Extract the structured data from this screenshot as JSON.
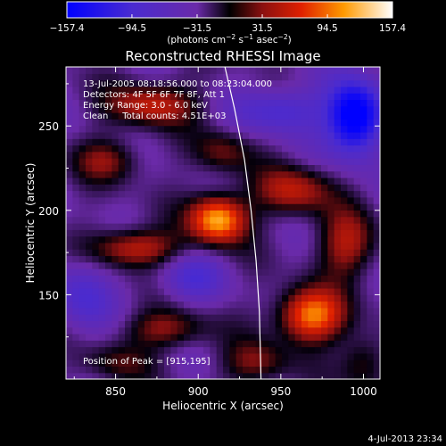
{
  "chart_data": {
    "type": "heatmap",
    "title": "Reconstructed RHESSI Image",
    "xlabel": "Heliocentric X (arcsec)",
    "ylabel": "Heliocentric Y (arcsec)",
    "xlim": [
      820,
      1010
    ],
    "ylim": [
      100,
      285
    ],
    "x_ticks": [
      850,
      900,
      950,
      1000
    ],
    "y_ticks": [
      150,
      200,
      250
    ],
    "colorbar": {
      "min": -157.4,
      "max": 157.4,
      "tick_labels": [
        "−157.4",
        "−94.5",
        "−31.5",
        "31.5",
        "94.5",
        "157.4"
      ],
      "tick_values": [
        -157.4,
        -94.5,
        -31.5,
        31.5,
        94.5,
        157.4
      ],
      "unit_prefix": "(photons cm",
      "unit_sup1": "−2",
      "unit_mid": " s",
      "unit_sup2": "−1",
      "unit_mid2": " asec",
      "unit_sup3": "−2",
      "unit_suffix": ")"
    },
    "annotations": [
      "13-Jul-2005 08:18:56.000 to 08:23:04.000",
      "Detectors: 4F 5F 6F 7F 8F, Att 1",
      "Energy Range: 3.0 - 6.0 keV",
      "Clean     Total counts: 4.51E+03"
    ],
    "peak_label": "Position of Peak = [915,195]",
    "peak": [
      915,
      195
    ],
    "limb_curve": [
      [
        915,
        290
      ],
      [
        922,
        260
      ],
      [
        928,
        230
      ],
      [
        932,
        200
      ],
      [
        935,
        170
      ],
      [
        937,
        140
      ],
      [
        938,
        100
      ]
    ],
    "sources": [
      {
        "x": 912,
        "y": 195,
        "amp": 157,
        "sx": 12,
        "sy": 10
      },
      {
        "x": 968,
        "y": 138,
        "amp": 140,
        "sx": 14,
        "sy": 11
      },
      {
        "x": 862,
        "y": 178,
        "amp": 95,
        "sx": 18,
        "sy": 8
      },
      {
        "x": 872,
        "y": 263,
        "amp": 90,
        "sx": 18,
        "sy": 9
      },
      {
        "x": 958,
        "y": 212,
        "amp": 85,
        "sx": 16,
        "sy": 10
      },
      {
        "x": 990,
        "y": 180,
        "amp": 80,
        "sx": 12,
        "sy": 14
      },
      {
        "x": 845,
        "y": 230,
        "amp": 60,
        "sx": 14,
        "sy": 9
      },
      {
        "x": 880,
        "y": 130,
        "amp": 65,
        "sx": 18,
        "sy": 8
      },
      {
        "x": 915,
        "y": 235,
        "amp": 55,
        "sx": 12,
        "sy": 9
      },
      {
        "x": 935,
        "y": 110,
        "amp": 60,
        "sx": 14,
        "sy": 9
      },
      {
        "x": 850,
        "y": 110,
        "amp": 45,
        "sx": 14,
        "sy": 8
      },
      {
        "x": 1000,
        "y": 110,
        "amp": 55,
        "sx": 10,
        "sy": 12
      },
      {
        "x": 995,
        "y": 255,
        "amp": -150,
        "sx": 12,
        "sy": 16
      },
      {
        "x": 830,
        "y": 150,
        "amp": -60,
        "sx": 12,
        "sy": 16
      },
      {
        "x": 950,
        "y": 260,
        "amp": -70,
        "sx": 18,
        "sy": 10
      },
      {
        "x": 895,
        "y": 160,
        "amp": -55,
        "sx": 14,
        "sy": 10
      }
    ]
  },
  "footer": {
    "timestamp": "4-Jul-2013 23:34"
  }
}
